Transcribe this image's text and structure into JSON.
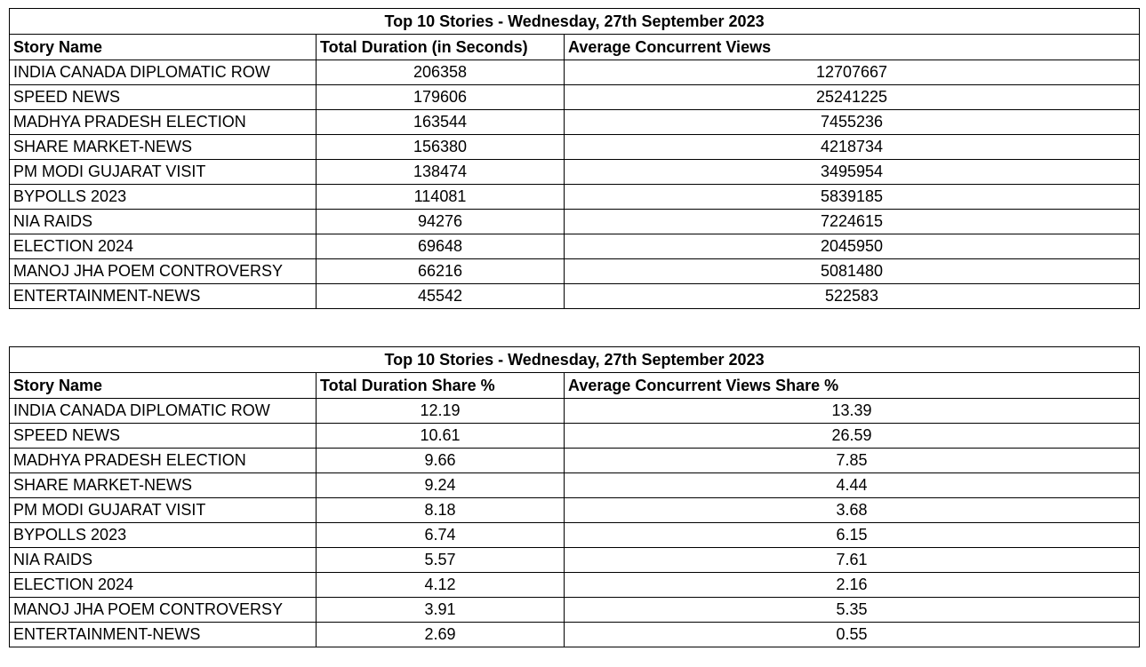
{
  "tables": [
    {
      "title": "Top 10 Stories - Wednesday, 27th September 2023",
      "columns": [
        "Story Name",
        "Total Duration (in Seconds)",
        "Average Concurrent Views"
      ],
      "rows": [
        [
          "INDIA CANADA DIPLOMATIC ROW",
          206358,
          12707667
        ],
        [
          "SPEED NEWS",
          179606,
          25241225
        ],
        [
          "MADHYA PRADESH ELECTION",
          163544,
          7455236
        ],
        [
          "SHARE MARKET-NEWS",
          156380,
          4218734
        ],
        [
          "PM MODI GUJARAT VISIT",
          138474,
          3495954
        ],
        [
          "BYPOLLS 2023",
          114081,
          5839185
        ],
        [
          "NIA RAIDS",
          94276,
          7224615
        ],
        [
          "ELECTION 2024",
          69648,
          2045950
        ],
        [
          "MANOJ JHA POEM CONTROVERSY",
          66216,
          5081480
        ],
        [
          "ENTERTAINMENT-NEWS",
          45542,
          522583
        ]
      ]
    },
    {
      "title": "Top 10 Stories - Wednesday, 27th September 2023",
      "columns": [
        "Story Name",
        "Total Duration Share %",
        "Average Concurrent Views Share %"
      ],
      "rows": [
        [
          "INDIA CANADA DIPLOMATIC ROW",
          12.19,
          13.39
        ],
        [
          "SPEED NEWS",
          10.61,
          26.59
        ],
        [
          "MADHYA PRADESH ELECTION",
          9.66,
          7.85
        ],
        [
          "SHARE MARKET-NEWS",
          9.24,
          4.44
        ],
        [
          "PM MODI GUJARAT VISIT",
          8.18,
          3.68
        ],
        [
          "BYPOLLS 2023",
          6.74,
          6.15
        ],
        [
          "NIA RAIDS",
          5.57,
          7.61
        ],
        [
          "ELECTION 2024",
          4.12,
          2.16
        ],
        [
          "MANOJ JHA POEM CONTROVERSY",
          3.91,
          5.35
        ],
        [
          "ENTERTAINMENT-NEWS",
          2.69,
          0.55
        ]
      ]
    }
  ]
}
